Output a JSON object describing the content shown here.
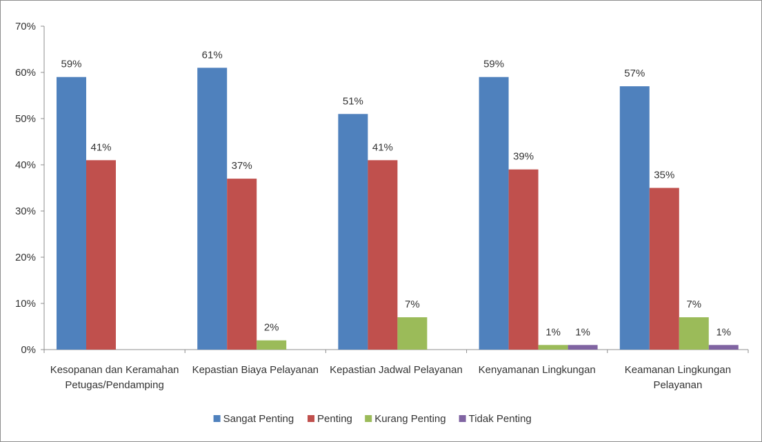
{
  "chart_data": {
    "type": "bar",
    "categories": [
      [
        "Kesopanan dan Keramahan",
        "Petugas/Pendamping"
      ],
      [
        "Kepastian Biaya Pelayanan"
      ],
      [
        "Kepastian Jadwal Pelayanan"
      ],
      [
        "Kenyamanan Lingkungan"
      ],
      [
        "Keamanan Lingkungan",
        "Pelayanan"
      ]
    ],
    "series": [
      {
        "name": "Sangat Penting",
        "color": "#4F81BD",
        "values": [
          59,
          61,
          51,
          59,
          57
        ],
        "labels": [
          "59%",
          "61%",
          "51%",
          "59%",
          "57%"
        ]
      },
      {
        "name": "Penting",
        "color": "#C0504D",
        "values": [
          41,
          37,
          41,
          39,
          35
        ],
        "labels": [
          "41%",
          "37%",
          "41%",
          "39%",
          "35%"
        ]
      },
      {
        "name": "Kurang Penting",
        "color": "#9BBB59",
        "values": [
          0,
          2,
          7,
          1,
          7
        ],
        "labels": [
          "",
          "2%",
          "7%",
          "1%",
          "7%"
        ]
      },
      {
        "name": "Tidak Penting",
        "color": "#8064A2",
        "values": [
          0,
          0,
          0,
          1,
          1
        ],
        "labels": [
          "",
          "",
          "",
          "1%",
          "1%"
        ]
      }
    ],
    "ylim": [
      0,
      70
    ],
    "yticks": [
      0,
      10,
      20,
      30,
      40,
      50,
      60,
      70
    ],
    "ytick_labels": [
      "0%",
      "10%",
      "20%",
      "30%",
      "40%",
      "50%",
      "60%",
      "70%"
    ],
    "title": "",
    "xlabel": "",
    "ylabel": "",
    "grid": false,
    "legend_position": "bottom"
  }
}
